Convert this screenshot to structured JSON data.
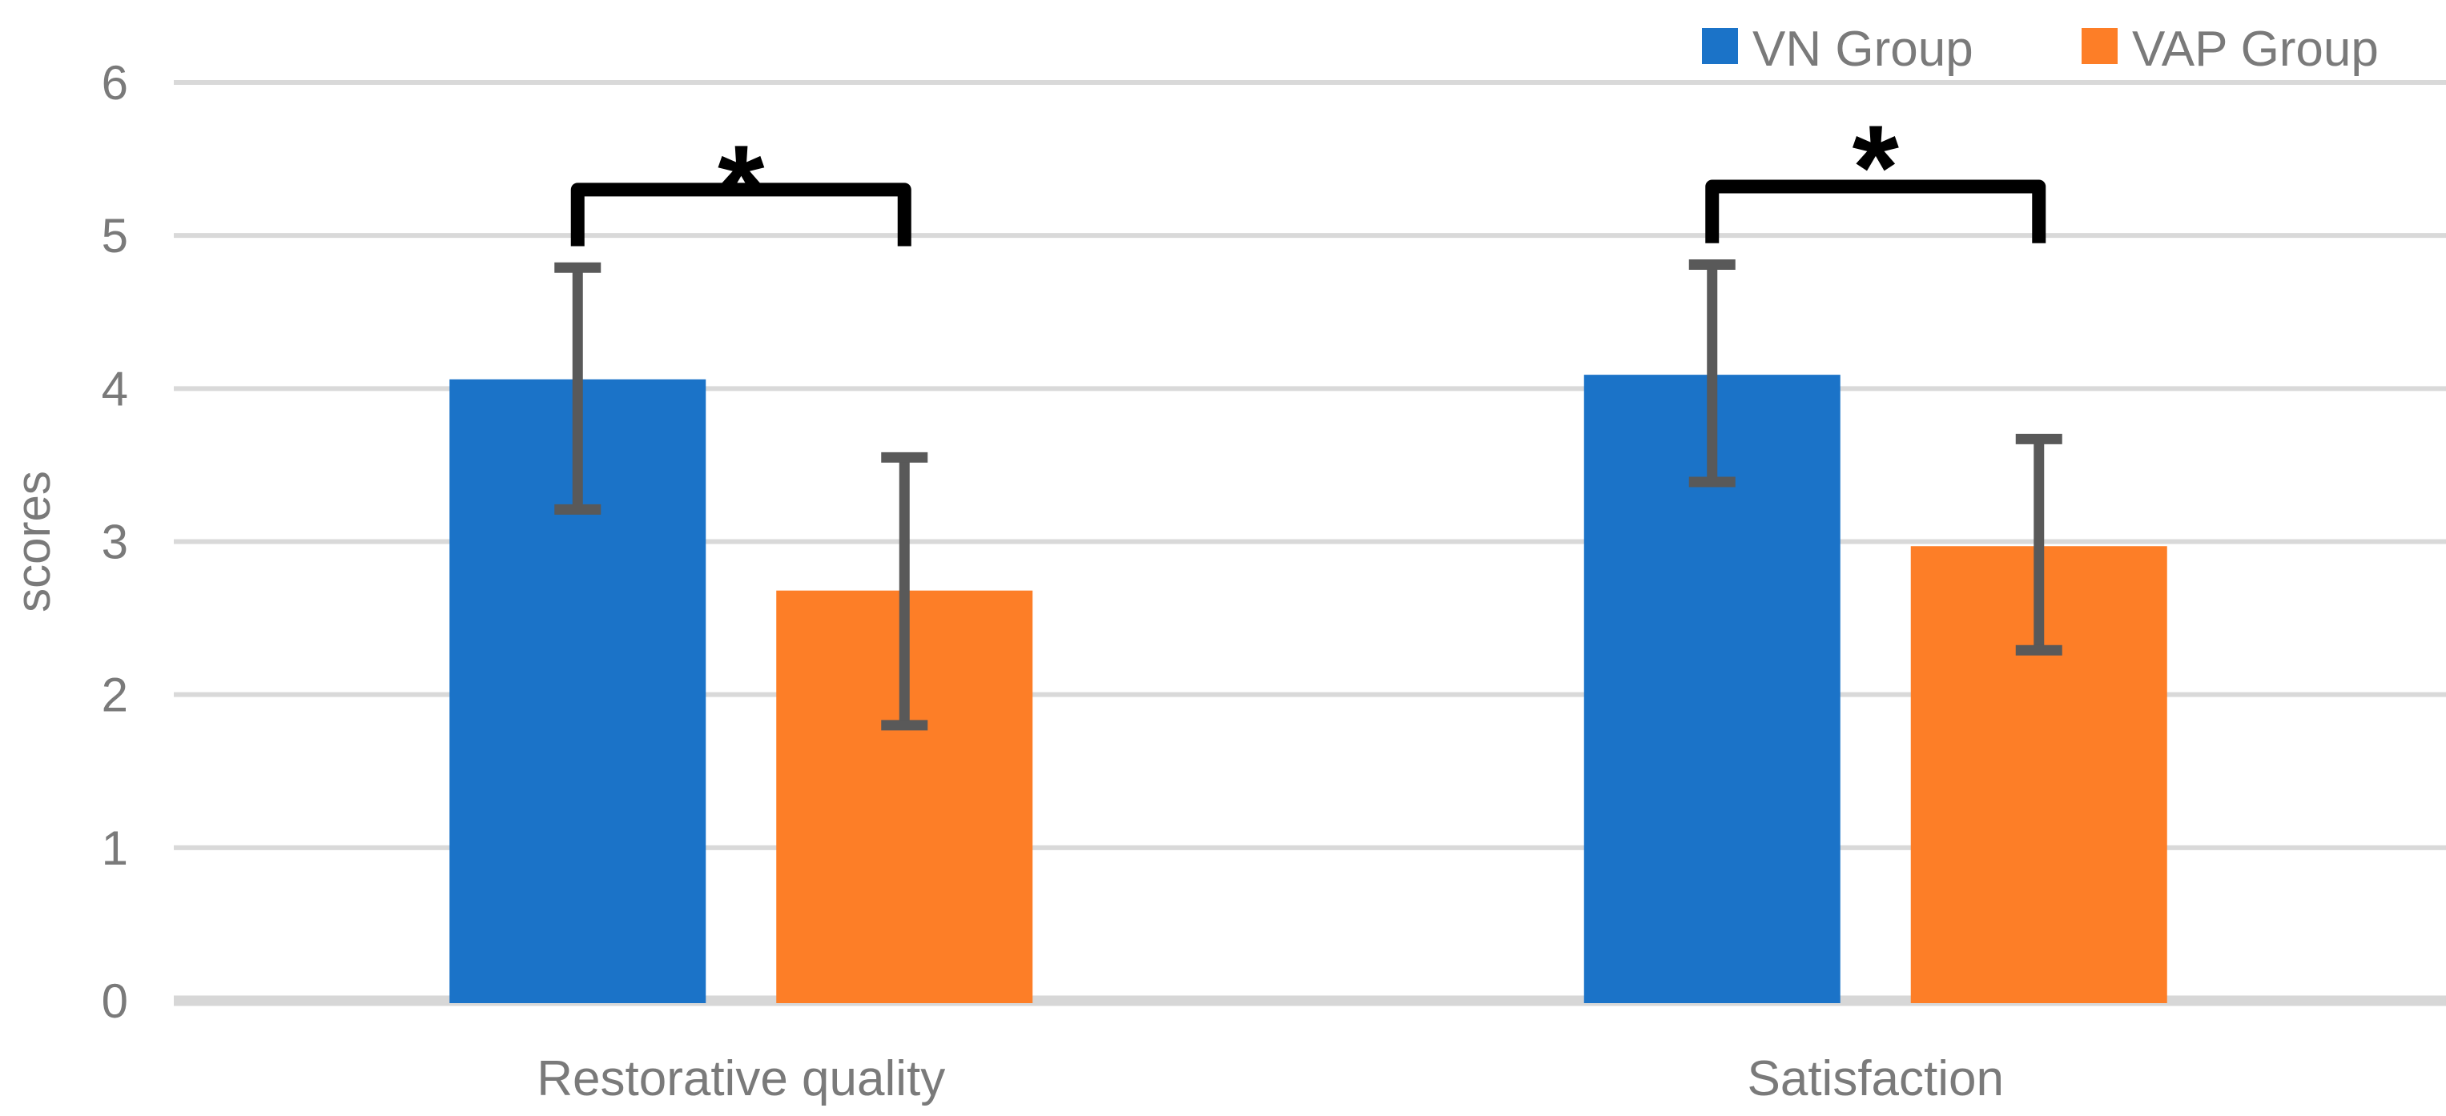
{
  "chart_data": {
    "type": "bar",
    "ylabel": "scores",
    "categories": [
      "Restorative quality",
      "Satisfaction"
    ],
    "series": [
      {
        "name": "VN Group",
        "color": "#1B73C8",
        "values": [
          4.06,
          4.09
        ],
        "error_low": [
          3.21,
          3.39
        ],
        "error_high": [
          4.79,
          4.81
        ]
      },
      {
        "name": "VAP Group",
        "color": "#FD7E27",
        "values": [
          2.68,
          2.97
        ],
        "error_low": [
          1.8,
          2.29
        ],
        "error_high": [
          3.55,
          3.67
        ]
      }
    ],
    "ylim": [
      0,
      6
    ],
    "yticks": [
      0,
      1,
      2,
      3,
      4,
      5,
      6
    ],
    "ytick_labels": [
      "0",
      "1",
      "2",
      "3",
      "4",
      "5",
      "6"
    ],
    "grid": true,
    "legend_position": "top-right",
    "significance_markers": [
      {
        "category": "Restorative quality",
        "label": "*",
        "bracket_top": 5.3,
        "bracket_bottom": 4.93,
        "label_y": 5.5
      },
      {
        "category": "Satisfaction",
        "label": "*",
        "bracket_top": 5.32,
        "bracket_bottom": 4.95,
        "label_y": 5.63
      }
    ],
    "gridline_color": "#D9D9D9",
    "axis_line_color": "#D7D7D7",
    "error_bar_color": "#595959",
    "text_color": "#7A7A7A",
    "significance_color": "#000000"
  }
}
